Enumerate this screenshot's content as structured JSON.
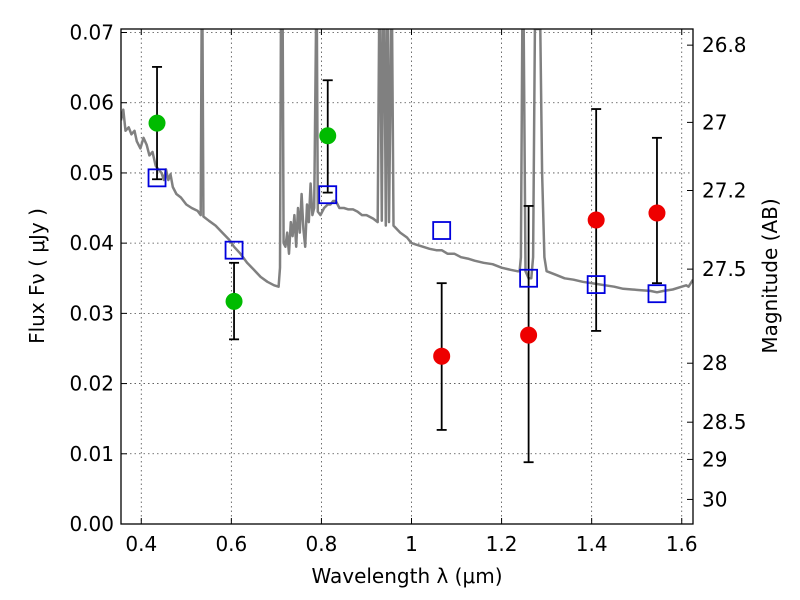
{
  "chart_data": {
    "type": "scatter",
    "xlabel": "Wavelength  λ (μm)",
    "ylabel": "Flux  Fν  ( μJy )",
    "ylabel_right": "Magnitude (AB)",
    "xlim": [
      0.355,
      1.625
    ],
    "ylim": [
      0.0,
      0.0705
    ],
    "x_ticks": [
      0.4,
      0.6,
      0.8,
      1.0,
      1.2,
      1.4,
      1.6
    ],
    "x_tick_labels": [
      "0.4",
      "0.6",
      "0.8",
      "1",
      "1.2",
      "1.4",
      "1.6"
    ],
    "y_ticks": [
      0.0,
      0.01,
      0.02,
      0.03,
      0.04,
      0.05,
      0.06,
      0.07
    ],
    "y_tick_labels": [
      "0.00",
      "0.01",
      "0.02",
      "0.03",
      "0.04",
      "0.05",
      "0.06",
      "0.07"
    ],
    "right_ticks": [
      {
        "label": "26.8",
        "flux": 0.0682
      },
      {
        "label": "27",
        "flux": 0.0572
      },
      {
        "label": "27.2",
        "flux": 0.0475
      },
      {
        "label": "27.5",
        "flux": 0.0363
      },
      {
        "label": "28",
        "flux": 0.0229
      },
      {
        "label": "28.5",
        "flux": 0.0145
      },
      {
        "label": "29",
        "flux": 0.0092
      },
      {
        "label": "30",
        "flux": 0.0035
      }
    ],
    "grid": true,
    "series": [
      {
        "marker": "circle",
        "color": "#00bb00",
        "points": [
          {
            "x": 0.435,
            "y": 0.0571,
            "err_lo": 0.0491,
            "err_hi": 0.0651
          },
          {
            "x": 0.606,
            "y": 0.0317,
            "err_lo": 0.0263,
            "err_hi": 0.0372
          },
          {
            "x": 0.814,
            "y": 0.0553,
            "err_lo": 0.0472,
            "err_hi": 0.0632
          }
        ]
      },
      {
        "marker": "circle",
        "color": "#ee0000",
        "points": [
          {
            "x": 1.067,
            "y": 0.0239,
            "err_lo": 0.0134,
            "err_hi": 0.0343
          },
          {
            "x": 1.26,
            "y": 0.0269,
            "err_lo": 0.0088,
            "err_hi": 0.0453
          },
          {
            "x": 1.41,
            "y": 0.0433,
            "err_lo": 0.0275,
            "err_hi": 0.0591
          },
          {
            "x": 1.545,
            "y": 0.0443,
            "err_lo": 0.0343,
            "err_hi": 0.055
          }
        ]
      },
      {
        "marker": "square",
        "color": "#0000dd",
        "points": [
          {
            "x": 0.435,
            "y": 0.0493
          },
          {
            "x": 0.606,
            "y": 0.039
          },
          {
            "x": 0.814,
            "y": 0.0469
          },
          {
            "x": 1.067,
            "y": 0.0418
          },
          {
            "x": 1.26,
            "y": 0.035
          },
          {
            "x": 1.41,
            "y": 0.0341
          },
          {
            "x": 1.545,
            "y": 0.0328
          }
        ]
      },
      {
        "type": "line",
        "color": "#808080",
        "points": [
          [
            0.355,
            0.0575
          ],
          [
            0.36,
            0.059
          ],
          [
            0.365,
            0.056
          ],
          [
            0.372,
            0.0565
          ],
          [
            0.378,
            0.0555
          ],
          [
            0.385,
            0.056
          ],
          [
            0.39,
            0.0545
          ],
          [
            0.398,
            0.0535
          ],
          [
            0.405,
            0.055
          ],
          [
            0.412,
            0.054
          ],
          [
            0.418,
            0.0525
          ],
          [
            0.425,
            0.053
          ],
          [
            0.432,
            0.051
          ],
          [
            0.438,
            0.0505
          ],
          [
            0.445,
            0.05
          ],
          [
            0.45,
            0.049
          ],
          [
            0.455,
            0.0505
          ],
          [
            0.46,
            0.049
          ],
          [
            0.465,
            0.0498
          ],
          [
            0.47,
            0.048
          ],
          [
            0.478,
            0.047
          ],
          [
            0.488,
            0.0465
          ],
          [
            0.5,
            0.0455
          ],
          [
            0.512,
            0.045
          ],
          [
            0.525,
            0.0446
          ],
          [
            0.532,
            0.044
          ],
          [
            0.534,
            0.0705
          ],
          [
            0.536,
            0.0705
          ],
          [
            0.538,
            0.0438
          ],
          [
            0.55,
            0.0432
          ],
          [
            0.565,
            0.0425
          ],
          [
            0.58,
            0.0415
          ],
          [
            0.595,
            0.0405
          ],
          [
            0.606,
            0.0395
          ],
          [
            0.62,
            0.0385
          ],
          [
            0.635,
            0.0372
          ],
          [
            0.65,
            0.0362
          ],
          [
            0.665,
            0.0352
          ],
          [
            0.68,
            0.0345
          ],
          [
            0.695,
            0.034
          ],
          [
            0.705,
            0.0338
          ],
          [
            0.708,
            0.0365
          ],
          [
            0.71,
            0.0705
          ],
          [
            0.714,
            0.0705
          ],
          [
            0.716,
            0.04
          ],
          [
            0.72,
            0.0395
          ],
          [
            0.724,
            0.0415
          ],
          [
            0.728,
            0.0385
          ],
          [
            0.732,
            0.043
          ],
          [
            0.736,
            0.041
          ],
          [
            0.74,
            0.044
          ],
          [
            0.744,
            0.0395
          ],
          [
            0.748,
            0.045
          ],
          [
            0.752,
            0.0415
          ],
          [
            0.756,
            0.047
          ],
          [
            0.76,
            0.042
          ],
          [
            0.764,
            0.0395
          ],
          [
            0.768,
            0.0455
          ],
          [
            0.772,
            0.043
          ],
          [
            0.776,
            0.0485
          ],
          [
            0.78,
            0.044
          ],
          [
            0.784,
            0.045
          ],
          [
            0.788,
            0.0705
          ],
          [
            0.79,
            0.0705
          ],
          [
            0.792,
            0.0445
          ],
          [
            0.798,
            0.044
          ],
          [
            0.806,
            0.045
          ],
          [
            0.814,
            0.0455
          ],
          [
            0.82,
            0.0455
          ],
          [
            0.826,
            0.046
          ],
          [
            0.832,
            0.046
          ],
          [
            0.84,
            0.045
          ],
          [
            0.85,
            0.045
          ],
          [
            0.86,
            0.0448
          ],
          [
            0.87,
            0.0448
          ],
          [
            0.88,
            0.0445
          ],
          [
            0.89,
            0.044
          ],
          [
            0.9,
            0.044
          ],
          [
            0.915,
            0.0435
          ],
          [
            0.925,
            0.043
          ],
          [
            0.928,
            0.0705
          ],
          [
            0.931,
            0.0705
          ],
          [
            0.934,
            0.0432
          ],
          [
            0.937,
            0.0705
          ],
          [
            0.94,
            0.0705
          ],
          [
            0.943,
            0.0425
          ],
          [
            0.946,
            0.0705
          ],
          [
            0.948,
            0.0705
          ],
          [
            0.95,
            0.043
          ],
          [
            0.955,
            0.0705
          ],
          [
            0.957,
            0.0705
          ],
          [
            0.96,
            0.0425
          ],
          [
            0.975,
            0.0415
          ],
          [
            0.99,
            0.0408
          ],
          [
            1.0,
            0.04
          ],
          [
            1.01,
            0.0398
          ],
          [
            1.025,
            0.0395
          ],
          [
            1.04,
            0.0392
          ],
          [
            1.055,
            0.039
          ],
          [
            1.067,
            0.039
          ],
          [
            1.08,
            0.0385
          ],
          [
            1.095,
            0.0385
          ],
          [
            1.11,
            0.038
          ],
          [
            1.125,
            0.0378
          ],
          [
            1.14,
            0.0375
          ],
          [
            1.16,
            0.0372
          ],
          [
            1.18,
            0.037
          ],
          [
            1.2,
            0.0365
          ],
          [
            1.22,
            0.0362
          ],
          [
            1.235,
            0.036
          ],
          [
            1.24,
            0.036
          ],
          [
            1.243,
            0.038
          ],
          [
            1.246,
            0.0705
          ],
          [
            1.249,
            0.0705
          ],
          [
            1.253,
            0.036
          ],
          [
            1.26,
            0.035
          ],
          [
            1.266,
            0.035
          ],
          [
            1.27,
            0.038
          ],
          [
            1.274,
            0.0705
          ],
          [
            1.28,
            0.0705
          ],
          [
            1.286,
            0.0705
          ],
          [
            1.29,
            0.05
          ],
          [
            1.295,
            0.038
          ],
          [
            1.3,
            0.036
          ],
          [
            1.32,
            0.0355
          ],
          [
            1.34,
            0.035
          ],
          [
            1.36,
            0.0348
          ],
          [
            1.38,
            0.0345
          ],
          [
            1.4,
            0.0343
          ],
          [
            1.41,
            0.0342
          ],
          [
            1.43,
            0.034
          ],
          [
            1.45,
            0.0338
          ],
          [
            1.47,
            0.0335
          ],
          [
            1.49,
            0.0334
          ],
          [
            1.51,
            0.0333
          ],
          [
            1.53,
            0.0332
          ],
          [
            1.545,
            0.033
          ],
          [
            1.56,
            0.0332
          ],
          [
            1.58,
            0.0334
          ],
          [
            1.6,
            0.0338
          ],
          [
            1.61,
            0.034
          ],
          [
            1.615,
            0.0338
          ],
          [
            1.625,
            0.0348
          ]
        ]
      }
    ]
  }
}
